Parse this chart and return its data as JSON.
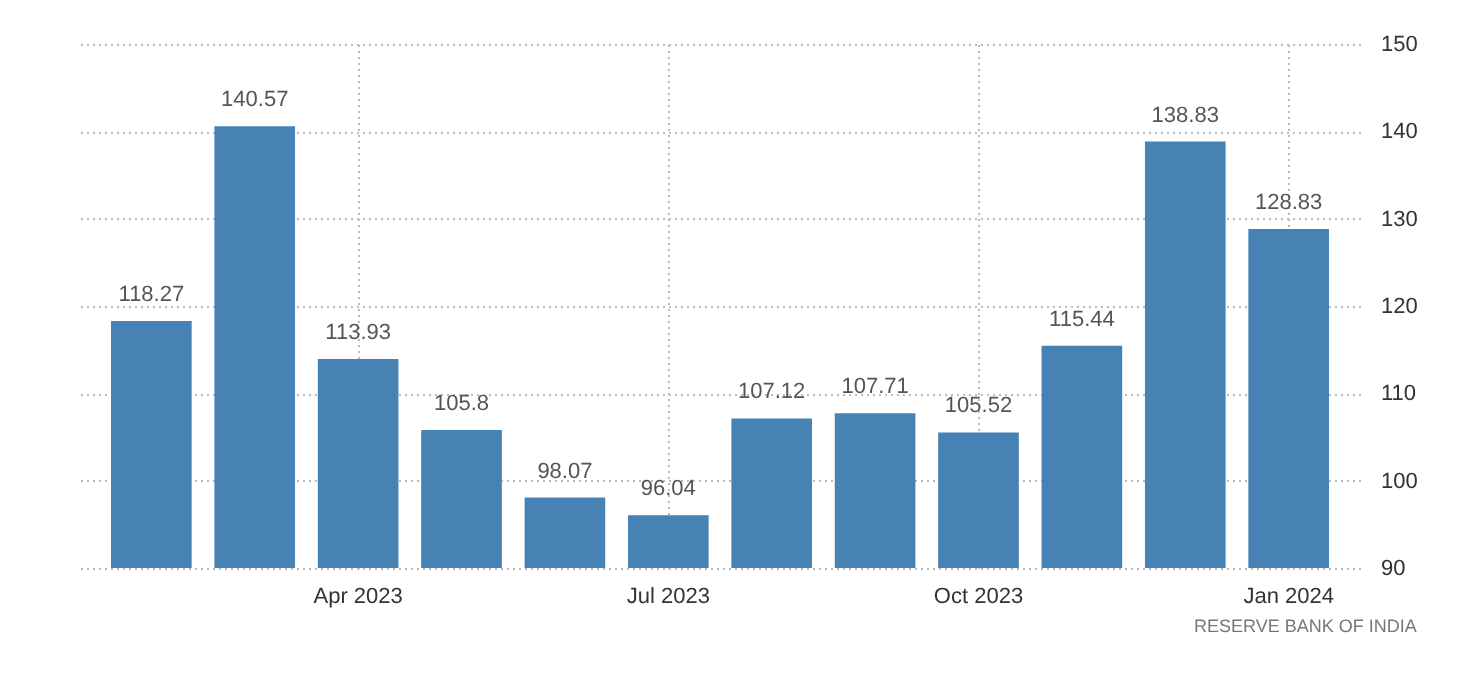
{
  "chart_data": {
    "type": "bar",
    "categories": [
      null,
      null,
      "Apr 2023",
      null,
      null,
      "Jul 2023",
      null,
      null,
      "Oct 2023",
      null,
      null,
      "Jan 2024"
    ],
    "values": [
      118.27,
      140.57,
      113.93,
      105.8,
      98.07,
      96.04,
      107.12,
      107.71,
      105.52,
      115.44,
      138.83,
      128.83
    ],
    "color": "#4682b4",
    "ylim": [
      90,
      150
    ],
    "yticks": [
      90,
      100,
      110,
      120,
      130,
      140,
      150
    ],
    "grid": true,
    "data_labels": true,
    "annotations": [
      "RESERVE BANK OF INDIA"
    ]
  }
}
